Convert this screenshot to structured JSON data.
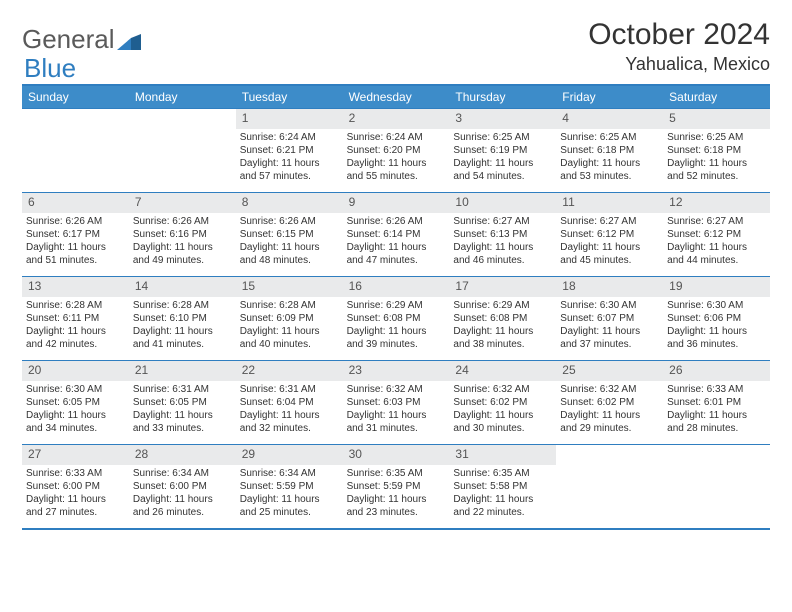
{
  "brand": {
    "part1": "General",
    "part2": "Blue"
  },
  "title": {
    "month": "October 2024",
    "location": "Yahualica, Mexico"
  },
  "colors": {
    "header_bg": "#3d8cc9",
    "rule": "#2f7ec0",
    "daynum_bg": "#e9eaeb",
    "text": "#333333",
    "logo_gray": "#5a5a5a",
    "logo_blue": "#2f7ec0"
  },
  "dayNames": [
    "Sunday",
    "Monday",
    "Tuesday",
    "Wednesday",
    "Thursday",
    "Friday",
    "Saturday"
  ],
  "calendar": {
    "firstDayOffset": 2,
    "days": [
      {
        "n": 1,
        "sunrise": "6:24 AM",
        "sunset": "6:21 PM",
        "daylight": "11 hours and 57 minutes."
      },
      {
        "n": 2,
        "sunrise": "6:24 AM",
        "sunset": "6:20 PM",
        "daylight": "11 hours and 55 minutes."
      },
      {
        "n": 3,
        "sunrise": "6:25 AM",
        "sunset": "6:19 PM",
        "daylight": "11 hours and 54 minutes."
      },
      {
        "n": 4,
        "sunrise": "6:25 AM",
        "sunset": "6:18 PM",
        "daylight": "11 hours and 53 minutes."
      },
      {
        "n": 5,
        "sunrise": "6:25 AM",
        "sunset": "6:18 PM",
        "daylight": "11 hours and 52 minutes."
      },
      {
        "n": 6,
        "sunrise": "6:26 AM",
        "sunset": "6:17 PM",
        "daylight": "11 hours and 51 minutes."
      },
      {
        "n": 7,
        "sunrise": "6:26 AM",
        "sunset": "6:16 PM",
        "daylight": "11 hours and 49 minutes."
      },
      {
        "n": 8,
        "sunrise": "6:26 AM",
        "sunset": "6:15 PM",
        "daylight": "11 hours and 48 minutes."
      },
      {
        "n": 9,
        "sunrise": "6:26 AM",
        "sunset": "6:14 PM",
        "daylight": "11 hours and 47 minutes."
      },
      {
        "n": 10,
        "sunrise": "6:27 AM",
        "sunset": "6:13 PM",
        "daylight": "11 hours and 46 minutes."
      },
      {
        "n": 11,
        "sunrise": "6:27 AM",
        "sunset": "6:12 PM",
        "daylight": "11 hours and 45 minutes."
      },
      {
        "n": 12,
        "sunrise": "6:27 AM",
        "sunset": "6:12 PM",
        "daylight": "11 hours and 44 minutes."
      },
      {
        "n": 13,
        "sunrise": "6:28 AM",
        "sunset": "6:11 PM",
        "daylight": "11 hours and 42 minutes."
      },
      {
        "n": 14,
        "sunrise": "6:28 AM",
        "sunset": "6:10 PM",
        "daylight": "11 hours and 41 minutes."
      },
      {
        "n": 15,
        "sunrise": "6:28 AM",
        "sunset": "6:09 PM",
        "daylight": "11 hours and 40 minutes."
      },
      {
        "n": 16,
        "sunrise": "6:29 AM",
        "sunset": "6:08 PM",
        "daylight": "11 hours and 39 minutes."
      },
      {
        "n": 17,
        "sunrise": "6:29 AM",
        "sunset": "6:08 PM",
        "daylight": "11 hours and 38 minutes."
      },
      {
        "n": 18,
        "sunrise": "6:30 AM",
        "sunset": "6:07 PM",
        "daylight": "11 hours and 37 minutes."
      },
      {
        "n": 19,
        "sunrise": "6:30 AM",
        "sunset": "6:06 PM",
        "daylight": "11 hours and 36 minutes."
      },
      {
        "n": 20,
        "sunrise": "6:30 AM",
        "sunset": "6:05 PM",
        "daylight": "11 hours and 34 minutes."
      },
      {
        "n": 21,
        "sunrise": "6:31 AM",
        "sunset": "6:05 PM",
        "daylight": "11 hours and 33 minutes."
      },
      {
        "n": 22,
        "sunrise": "6:31 AM",
        "sunset": "6:04 PM",
        "daylight": "11 hours and 32 minutes."
      },
      {
        "n": 23,
        "sunrise": "6:32 AM",
        "sunset": "6:03 PM",
        "daylight": "11 hours and 31 minutes."
      },
      {
        "n": 24,
        "sunrise": "6:32 AM",
        "sunset": "6:02 PM",
        "daylight": "11 hours and 30 minutes."
      },
      {
        "n": 25,
        "sunrise": "6:32 AM",
        "sunset": "6:02 PM",
        "daylight": "11 hours and 29 minutes."
      },
      {
        "n": 26,
        "sunrise": "6:33 AM",
        "sunset": "6:01 PM",
        "daylight": "11 hours and 28 minutes."
      },
      {
        "n": 27,
        "sunrise": "6:33 AM",
        "sunset": "6:00 PM",
        "daylight": "11 hours and 27 minutes."
      },
      {
        "n": 28,
        "sunrise": "6:34 AM",
        "sunset": "6:00 PM",
        "daylight": "11 hours and 26 minutes."
      },
      {
        "n": 29,
        "sunrise": "6:34 AM",
        "sunset": "5:59 PM",
        "daylight": "11 hours and 25 minutes."
      },
      {
        "n": 30,
        "sunrise": "6:35 AM",
        "sunset": "5:59 PM",
        "daylight": "11 hours and 23 minutes."
      },
      {
        "n": 31,
        "sunrise": "6:35 AM",
        "sunset": "5:58 PM",
        "daylight": "11 hours and 22 minutes."
      }
    ]
  },
  "labels": {
    "sunrise": "Sunrise:",
    "sunset": "Sunset:",
    "daylight": "Daylight:"
  }
}
